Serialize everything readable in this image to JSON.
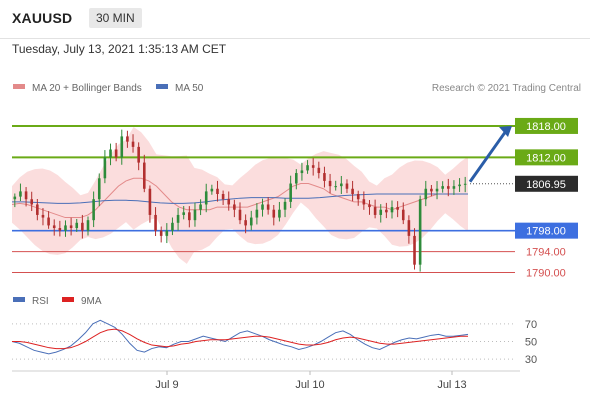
{
  "header": {
    "symbol": "XAUUSD",
    "timeframe": "30 MIN",
    "datetime": "Tuesday, July 13, 2021 1:35:13 AM CET"
  },
  "legend": {
    "ma20_label": "MA 20 + Bollinger Bands",
    "ma50_label": "MA 50",
    "credit": "Research © 2021 Trading Central",
    "rsi_label": "RSI",
    "rsi_ma_label": "9MA"
  },
  "colors": {
    "green_level": "#6aaa16",
    "blue_level": "#3d6fe0",
    "red_level": "#d45050",
    "bollinger_fill": "#fbd9d9",
    "ma20": "#e38a8a",
    "ma50": "#4a6fb8",
    "bull_candle": "#2e8b3a",
    "bear_candle": "#b22f2f",
    "arrow": "#2a5da8",
    "current_price_bg": "#2b2b2b"
  },
  "chart_data": [
    {
      "type": "candlestick",
      "instrument": "XAUUSD",
      "interval": "30 MIN",
      "x_ticks": [
        "Jul 9",
        "Jul 10",
        "Jul 13"
      ],
      "ylim": [
        1788,
        1822
      ],
      "levels": [
        {
          "value": 1818.0,
          "label": "1818.00",
          "kind": "resistance"
        },
        {
          "value": 1812.0,
          "label": "1812.00",
          "kind": "resistance"
        },
        {
          "value": 1806.95,
          "label": "1806.95",
          "kind": "current"
        },
        {
          "value": 1798.0,
          "label": "1798.00",
          "kind": "pivot"
        },
        {
          "value": 1794.0,
          "label": "1794.00",
          "kind": "support"
        },
        {
          "value": 1790.0,
          "label": "1790.00",
          "kind": "support"
        }
      ],
      "series_close": [
        1804.5,
        1805.5,
        1804.0,
        1803.0,
        1801.0,
        1800.5,
        1799.0,
        1798.5,
        1798.0,
        1799.0,
        1798.5,
        1799.5,
        1798.0,
        1800.0,
        1804.0,
        1808.0,
        1812.0,
        1813.5,
        1812.0,
        1816.0,
        1815.0,
        1814.0,
        1811.0,
        1806.0,
        1801.0,
        1798.0,
        1797.0,
        1798.0,
        1799.5,
        1801.0,
        1801.5,
        1800.0,
        1802.0,
        1803.0,
        1805.5,
        1806.0,
        1805.0,
        1804.0,
        1803.0,
        1802.0,
        1800.0,
        1799.0,
        1800.5,
        1802.0,
        1803.0,
        1802.0,
        1800.5,
        1802.0,
        1803.5,
        1807.0,
        1809.0,
        1809.5,
        1810.5,
        1810.0,
        1809.0,
        1807.5,
        1806.5,
        1806.5,
        1807.0,
        1806.0,
        1805.0,
        1804.0,
        1803.0,
        1802.5,
        1801.0,
        1802.0,
        1801.5,
        1802.5,
        1802.0,
        1800.0,
        1797.0,
        1791.5,
        1804.0,
        1806.0,
        1805.5,
        1806.0,
        1806.5,
        1806.0,
        1806.5,
        1806.8,
        1806.95
      ],
      "ma20": [
        1803.0,
        1803.2,
        1803.0,
        1802.5,
        1802.0,
        1801.5,
        1801.0,
        1800.5,
        1800.5,
        1800.5,
        1801.0,
        1802.0,
        1803.5,
        1805.0,
        1806.5,
        1807.5,
        1808.0,
        1808.0,
        1807.5,
        1806.5,
        1805.0,
        1803.5,
        1802.5,
        1802.0,
        1802.0,
        1802.0,
        1802.0,
        1802.5,
        1802.5,
        1802.5,
        1802.5,
        1802.5,
        1803.0,
        1803.5,
        1804.0,
        1804.5,
        1805.5,
        1806.5,
        1807.0,
        1807.0,
        1806.5,
        1806.0,
        1805.0,
        1804.5,
        1804.0,
        1803.5,
        1803.5,
        1803.0,
        1802.5,
        1802.5,
        1802.0,
        1802.5,
        1803.0,
        1803.5,
        1804.0,
        1804.5,
        1805.0,
        1805.0,
        1805.0,
        1805.0,
        1805.0
      ],
      "ma50": [
        1803.5,
        1803.5,
        1803.4,
        1803.3,
        1803.2,
        1803.2,
        1803.3,
        1803.5,
        1803.7,
        1803.8,
        1803.8,
        1803.7,
        1803.5,
        1803.3,
        1803.2,
        1803.2,
        1803.3,
        1803.5,
        1803.8,
        1804.0,
        1804.2,
        1804.3,
        1804.3,
        1804.3,
        1804.2,
        1804.2,
        1804.2,
        1804.3,
        1804.5,
        1804.7,
        1804.8,
        1804.9,
        1805.0,
        1805.0,
        1805.0,
        1805.0,
        1805.0,
        1805.0,
        1805.0,
        1805.0,
        1805.0
      ],
      "projection": {
        "from": 1806.95,
        "to": 1818.0,
        "direction": "up"
      }
    },
    {
      "type": "line",
      "title": "RSI",
      "ylim": [
        20,
        80
      ],
      "y_ticks": [
        70,
        50,
        30
      ],
      "series": [
        {
          "name": "RSI",
          "values": [
            50,
            48,
            44,
            40,
            38,
            36,
            38,
            41,
            45,
            52,
            60,
            70,
            74,
            70,
            66,
            58,
            48,
            40,
            38,
            42,
            44,
            43,
            47,
            50,
            50,
            53,
            56,
            54,
            52,
            50,
            55,
            60,
            62,
            59,
            56,
            52,
            49,
            46,
            44,
            41,
            43,
            46,
            50,
            55,
            60,
            62,
            58,
            52,
            47,
            43,
            41,
            45,
            49,
            52,
            54,
            53,
            55,
            57,
            58,
            56,
            56,
            57,
            58
          ]
        },
        {
          "name": "9MA",
          "values": [
            50,
            50,
            49,
            47,
            45,
            43,
            42,
            42,
            43,
            46,
            50,
            55,
            60,
            63,
            64,
            62,
            58,
            53,
            49,
            46,
            45,
            44,
            45,
            47,
            48,
            50,
            51,
            52,
            52,
            52,
            53,
            54,
            55,
            56,
            56,
            55,
            53,
            51,
            49,
            47,
            46,
            46,
            47,
            49,
            52,
            54,
            55,
            54,
            52,
            50,
            48,
            47,
            47,
            48,
            49,
            50,
            51,
            52,
            53,
            54,
            55,
            56,
            56
          ]
        }
      ]
    }
  ]
}
